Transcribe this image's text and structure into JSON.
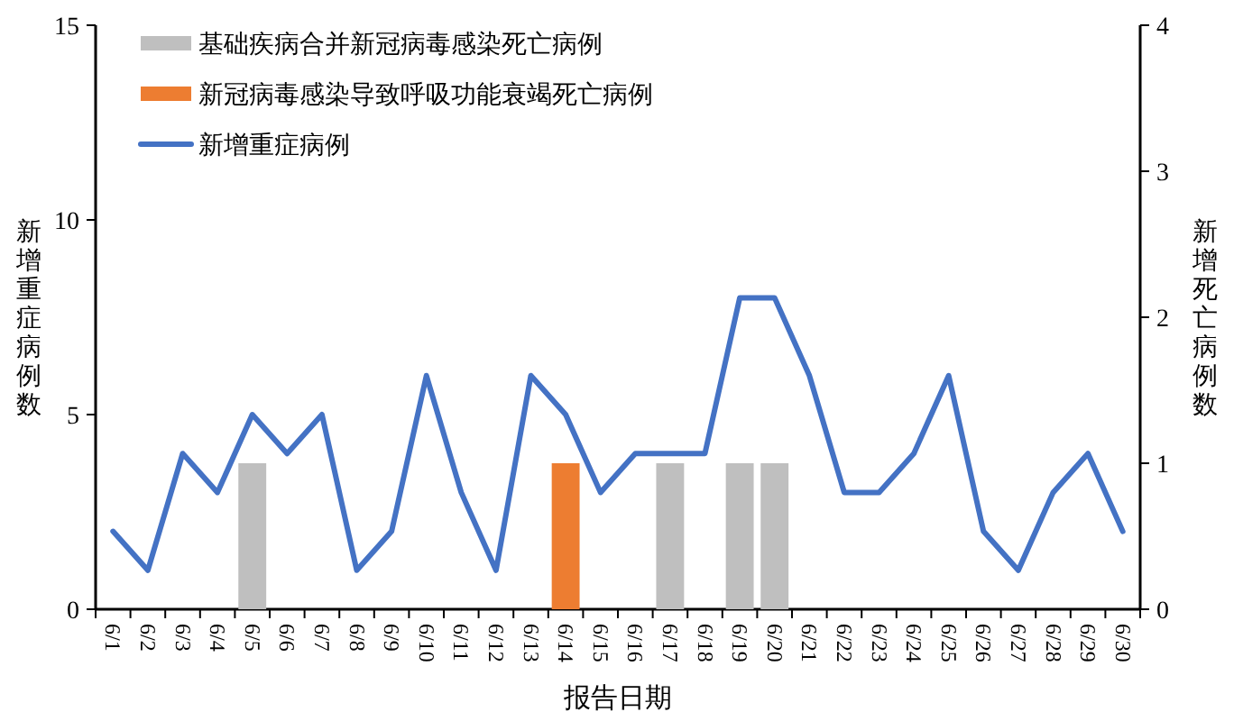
{
  "chart_data": {
    "type": "bar",
    "xlabel": "报告日期",
    "ylabel": "新增重症病例数",
    "y2label": "新增死亡病例数",
    "categories": [
      "6/1",
      "6/2",
      "6/3",
      "6/4",
      "6/5",
      "6/6",
      "6/7",
      "6/8",
      "6/9",
      "6/10",
      "6/11",
      "6/12",
      "6/13",
      "6/14",
      "6/15",
      "6/16",
      "6/17",
      "6/18",
      "6/19",
      "6/20",
      "6/21",
      "6/22",
      "6/23",
      "6/24",
      "6/25",
      "6/26",
      "6/27",
      "6/28",
      "6/29",
      "6/30"
    ],
    "series": [
      {
        "name": "基础疾病合并新冠病毒感染死亡病例",
        "axis": "y2",
        "color": "#bfbfbf",
        "values": [
          null,
          null,
          null,
          null,
          1,
          null,
          null,
          null,
          null,
          null,
          null,
          null,
          null,
          null,
          null,
          null,
          1,
          null,
          1,
          1,
          null,
          null,
          null,
          null,
          null,
          null,
          null,
          null,
          null,
          null
        ]
      },
      {
        "name": "新冠病毒感染导致呼吸功能衰竭死亡病例",
        "axis": "y2",
        "color": "#ed7d31",
        "values": [
          null,
          null,
          null,
          null,
          null,
          null,
          null,
          null,
          null,
          null,
          null,
          null,
          null,
          1,
          null,
          null,
          null,
          null,
          null,
          null,
          null,
          null,
          null,
          null,
          null,
          null,
          null,
          null,
          null,
          null
        ]
      },
      {
        "name": "新增重症病例",
        "type": "line",
        "axis": "y",
        "color": "#4472c4",
        "values": [
          2,
          1,
          4,
          3,
          5,
          4,
          5,
          1,
          2,
          6,
          3,
          1,
          6,
          5,
          3,
          4,
          4,
          4,
          8,
          8,
          6,
          3,
          3,
          4,
          6,
          2,
          1,
          3,
          4,
          2
        ]
      }
    ],
    "ylim": [
      0,
      15
    ],
    "yticks": [
      0,
      5,
      10,
      15
    ],
    "y2lim": [
      0,
      4
    ],
    "y2ticks": [
      0,
      1,
      2,
      3,
      4
    ],
    "grid": false,
    "legend": "top left",
    "marker": "none",
    "line_style": "solid"
  }
}
